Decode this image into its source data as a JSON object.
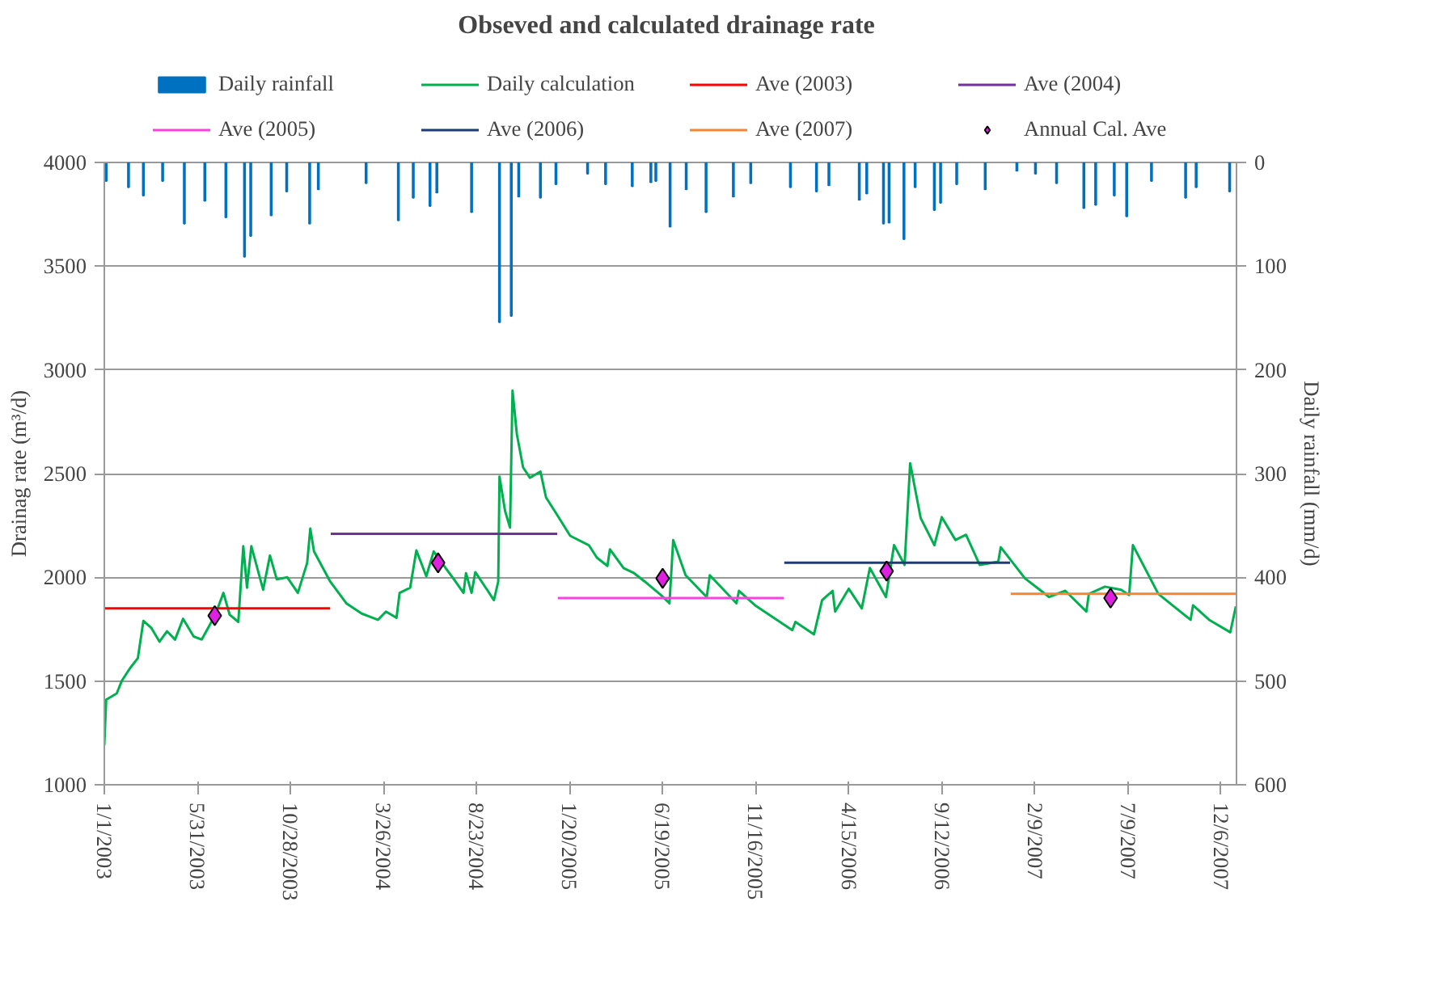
{
  "chart_data": {
    "type": "line",
    "title": "Obseved and calculated  drainage rate",
    "ylabel": "Drainag rate (m³/d)",
    "y2label": "Daily rainfall (mm/d)",
    "xlim": [
      "2003-01-01",
      "2007-12-31"
    ],
    "xticks": [
      {
        "value": "2003-01-01",
        "label": "1/1/2003"
      },
      {
        "value": "2003-05-31",
        "label": "5/31/2003"
      },
      {
        "value": "2003-10-28",
        "label": "10/28/2003"
      },
      {
        "value": "2004-03-26",
        "label": "3/26/2004"
      },
      {
        "value": "2004-08-23",
        "label": "8/23/2004"
      },
      {
        "value": "2005-01-20",
        "label": "1/20/2005"
      },
      {
        "value": "2005-06-19",
        "label": "6/19/2005"
      },
      {
        "value": "2005-11-16",
        "label": "11/16/2005"
      },
      {
        "value": "2006-04-15",
        "label": "4/15/2006"
      },
      {
        "value": "2006-09-12",
        "label": "9/12/2006"
      },
      {
        "value": "2007-02-09",
        "label": "2/9/2007"
      },
      {
        "value": "2007-07-09",
        "label": "7/9/2007"
      },
      {
        "value": "2007-12-06",
        "label": "12/6/2007"
      }
    ],
    "ylim": [
      1000,
      4000
    ],
    "yticks": [
      1000,
      1500,
      2000,
      2500,
      3000,
      3500,
      4000
    ],
    "y2lim": [
      600,
      0
    ],
    "y2ticks": [
      0,
      100,
      200,
      300,
      400,
      500,
      600
    ],
    "grid": "y",
    "legend": "top",
    "series": [
      {
        "name": "Daily rainfall",
        "type": "bar",
        "axis": "y2",
        "color": "#0070c0",
        "x": [
          "2003-01-04",
          "2003-02-09",
          "2003-03-05",
          "2003-04-05",
          "2003-05-10",
          "2003-06-12",
          "2003-07-16",
          "2003-08-15",
          "2003-08-25",
          "2003-09-27",
          "2003-10-22",
          "2003-11-28",
          "2003-12-12",
          "2004-02-27",
          "2004-04-19",
          "2004-05-13",
          "2004-06-09",
          "2004-06-20",
          "2004-08-15",
          "2004-09-29",
          "2004-10-18",
          "2004-10-30",
          "2004-12-04",
          "2004-12-29",
          "2005-02-18",
          "2005-03-19",
          "2005-05-01",
          "2005-05-31",
          "2005-06-08",
          "2005-07-01",
          "2005-07-27",
          "2005-08-28",
          "2005-10-11",
          "2005-11-08",
          "2006-01-11",
          "2006-02-22",
          "2006-03-14",
          "2006-05-02",
          "2006-05-14",
          "2006-06-10",
          "2006-06-19",
          "2006-07-13",
          "2006-07-31",
          "2006-08-31",
          "2006-09-10",
          "2006-10-06",
          "2006-11-21",
          "2007-01-11",
          "2007-02-10",
          "2007-03-16",
          "2007-04-29",
          "2007-05-18",
          "2007-06-17",
          "2007-07-07",
          "2007-08-16",
          "2007-10-10",
          "2007-10-27",
          "2007-12-20"
        ],
        "values": [
          18,
          24,
          32,
          18,
          59,
          37,
          53,
          91,
          71,
          51,
          28,
          59,
          26,
          20,
          56,
          34,
          42,
          29,
          48,
          154,
          148,
          33,
          34,
          21,
          11,
          21,
          23,
          19,
          18,
          62,
          26,
          48,
          33,
          20,
          24,
          28,
          22,
          36,
          30,
          59,
          58,
          74,
          24,
          46,
          39,
          21,
          26,
          8,
          11,
          20,
          44,
          41,
          32,
          52,
          18,
          34,
          24,
          28
        ]
      },
      {
        "name": "Daily calculation",
        "color": "#00b050",
        "x": [
          "2003-01-01",
          "2003-01-04",
          "2003-01-21",
          "2003-01-29",
          "2003-02-11",
          "2003-02-24",
          "2003-03-05",
          "2003-03-18",
          "2003-03-31",
          "2003-04-12",
          "2003-04-25",
          "2003-05-08",
          "2003-05-25",
          "2003-06-07",
          "2003-06-29",
          "2003-07-12",
          "2003-07-22",
          "2003-08-05",
          "2003-08-13",
          "2003-08-19",
          "2003-08-26",
          "2003-09-14",
          "2003-09-25",
          "2003-10-06",
          "2003-10-23",
          "2003-11-09",
          "2003-11-24",
          "2003-11-29",
          "2003-12-05",
          "2003-12-31",
          "2004-01-26",
          "2004-02-20",
          "2004-03-17",
          "2004-03-30",
          "2004-04-16",
          "2004-04-21",
          "2004-05-08",
          "2004-05-18",
          "2004-06-03",
          "2004-06-15",
          "2004-06-28",
          "2004-07-20",
          "2004-08-02",
          "2004-08-06",
          "2004-08-15",
          "2004-08-21",
          "2004-09-09",
          "2004-09-20",
          "2004-09-27",
          "2004-09-29",
          "2004-10-08",
          "2004-10-16",
          "2004-10-20",
          "2004-10-27",
          "2004-11-06",
          "2004-11-17",
          "2004-12-04",
          "2004-12-13",
          "2004-12-30",
          "2005-01-21",
          "2005-02-20",
          "2005-03-05",
          "2005-03-22",
          "2005-03-26",
          "2005-04-17",
          "2005-05-04",
          "2005-05-21",
          "2005-06-16",
          "2005-06-30",
          "2005-07-06",
          "2005-07-26",
          "2005-08-29",
          "2005-09-03",
          "2005-10-16",
          "2005-10-20",
          "2005-11-15",
          "2006-01-14",
          "2006-01-19",
          "2006-02-18",
          "2006-03-03",
          "2006-03-20",
          "2006-03-24",
          "2006-04-15",
          "2006-05-06",
          "2006-05-19",
          "2006-06-14",
          "2006-06-27",
          "2006-07-14",
          "2006-07-23",
          "2006-08-09",
          "2006-08-31",
          "2006-09-12",
          "2006-10-04",
          "2006-10-21",
          "2006-11-12",
          "2006-12-12",
          "2006-12-16",
          "2007-01-02",
          "2007-01-24",
          "2007-02-19",
          "2007-03-04",
          "2007-03-30",
          "2007-05-03",
          "2007-05-07",
          "2007-06-02",
          "2007-06-28",
          "2007-07-11",
          "2007-07-17",
          "2007-08-27",
          "2007-10-18",
          "2007-10-22",
          "2007-11-17",
          "2007-12-21",
          "2007-12-30"
        ],
        "values": [
          1190,
          1410,
          1440,
          1500,
          1560,
          1610,
          1790,
          1755,
          1690,
          1740,
          1700,
          1800,
          1715,
          1700,
          1820,
          1925,
          1820,
          1785,
          2150,
          1950,
          2150,
          1940,
          2105,
          1990,
          2000,
          1925,
          2070,
          2235,
          2125,
          1980,
          1875,
          1825,
          1795,
          1835,
          1805,
          1925,
          1950,
          2130,
          2005,
          2125,
          2070,
          1980,
          1925,
          2020,
          1925,
          2025,
          1940,
          1890,
          1980,
          2485,
          2320,
          2240,
          2900,
          2690,
          2530,
          2480,
          2510,
          2385,
          2305,
          2200,
          2155,
          2095,
          2055,
          2135,
          2045,
          2020,
          1980,
          1915,
          1875,
          2180,
          2010,
          1905,
          2010,
          1875,
          1935,
          1865,
          1745,
          1785,
          1725,
          1890,
          1935,
          1835,
          1945,
          1850,
          2045,
          1905,
          2155,
          2060,
          2550,
          2285,
          2155,
          2290,
          2180,
          2205,
          2060,
          2075,
          2145,
          2080,
          1995,
          1935,
          1905,
          1935,
          1835,
          1920,
          1955,
          1940,
          1915,
          2155,
          1920,
          1795,
          1865,
          1795,
          1735,
          1860
        ]
      },
      {
        "name": "Ave (2003)",
        "color": "#ff0000",
        "x": [
          "2003-01-01",
          "2003-12-31"
        ],
        "values": [
          1850,
          1850
        ]
      },
      {
        "name": "Ave (2004)",
        "color": "#7030a0",
        "x": [
          "2004-01-01",
          "2004-12-31"
        ],
        "values": [
          2210,
          2210
        ]
      },
      {
        "name": "Ave (2005)",
        "color": "#ff40e0",
        "x": [
          "2005-01-01",
          "2005-12-31"
        ],
        "values": [
          1900,
          1900
        ]
      },
      {
        "name": "Ave (2006)",
        "color": "#1f3a7a",
        "x": [
          "2006-01-01",
          "2006-12-31"
        ],
        "values": [
          2070,
          2070
        ]
      },
      {
        "name": "Ave (2007)",
        "color": "#f58530",
        "x": [
          "2007-01-01",
          "2007-12-31"
        ],
        "values": [
          1920,
          1920
        ]
      },
      {
        "name": "Annual Cal. Ave",
        "type": "scatter",
        "marker": "diamond",
        "color": "#e020e0",
        "x": [
          "2003-06-28",
          "2004-06-22",
          "2005-06-19",
          "2006-06-15",
          "2007-06-11"
        ],
        "values": [
          1815,
          2070,
          1995,
          2030,
          1900
        ]
      }
    ]
  }
}
